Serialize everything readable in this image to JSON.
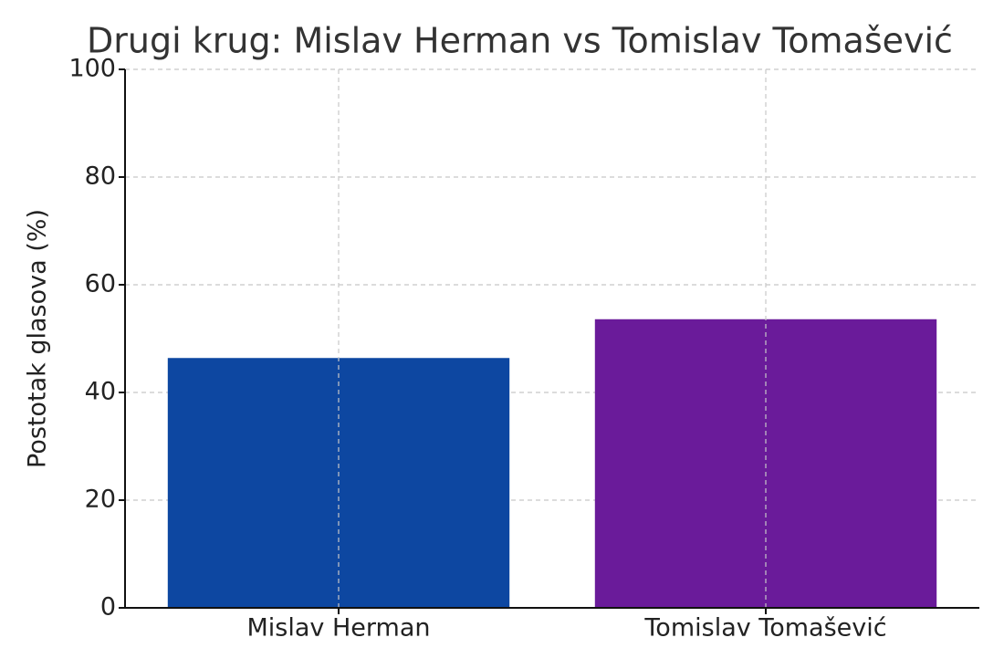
{
  "chart_data": {
    "type": "bar",
    "title": "Drugi krug: Mislav Herman vs Tomislav Tomašević",
    "y_label": "Postotak glasova (%)",
    "categories": [
      "Mislav Herman",
      "Tomislav Tomašević"
    ],
    "values": [
      46.4,
      53.6
    ],
    "colors": [
      "#0d47a1",
      "#6a1b9a"
    ],
    "ylim": [
      0,
      100
    ],
    "yticks": [
      0,
      20,
      40,
      60,
      80,
      100
    ],
    "grid": true
  }
}
